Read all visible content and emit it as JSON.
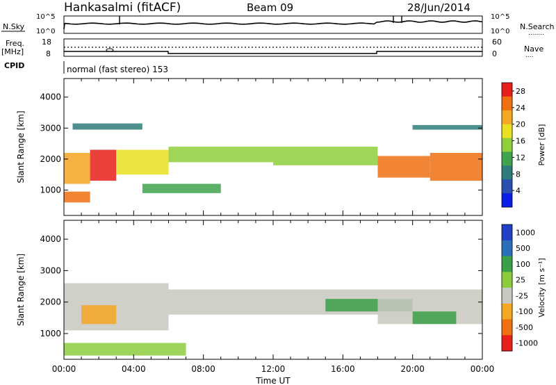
{
  "header": {
    "station": "Hankasalmi (fitACF)",
    "beam": "Beam 09",
    "date": "28/Jun/2014"
  },
  "status_panels": {
    "nsky_label": "N.Sky",
    "nsearch_label": "N.Search",
    "nsearch_legend": "........",
    "freq_label": "Freq.",
    "freq_unit": "[MHz]",
    "nave_label": "Nave",
    "nave_legend": "....",
    "cpid_label": "CPID",
    "cpid_value": "normal (fast stereo) 153",
    "left_ticks_noise": [
      "10^5",
      "10^0"
    ],
    "right_ticks_noise": [
      "10^5",
      "10^0"
    ],
    "left_ticks_freq": [
      "18",
      "8"
    ],
    "right_ticks_nave": [
      "60",
      "0"
    ]
  },
  "chart_data": [
    {
      "type": "heatmap",
      "id": "power",
      "xlabel": "",
      "ylabel": "Slant Range [km]",
      "x_ticks": [
        "00:00",
        "04:00",
        "08:00",
        "12:00",
        "16:00",
        "20:00",
        "00:00"
      ],
      "x_range_hours": [
        0,
        24
      ],
      "y_ticks": [
        1000,
        2000,
        3000,
        4000
      ],
      "y_range_km": [
        180,
        4600
      ],
      "colorbar": {
        "label": "Power [dB]",
        "ticks": [
          4,
          8,
          12,
          16,
          20,
          24,
          28
        ],
        "range": [
          0,
          30
        ],
        "colors": [
          "#0a1ee6",
          "#2a4fb0",
          "#2e7d7a",
          "#3fa34d",
          "#8fcf3a",
          "#e8e020",
          "#f5a623",
          "#f07010",
          "#e8201a"
        ]
      },
      "bands": [
        {
          "t0": 0.0,
          "t1": 1.5,
          "r0": 1200,
          "r1": 2200,
          "level": 22
        },
        {
          "t0": 1.5,
          "t1": 3.0,
          "r0": 1300,
          "r1": 2300,
          "level": 27
        },
        {
          "t0": 3.0,
          "t1": 6.0,
          "r0": 1500,
          "r1": 2300,
          "level": 18
        },
        {
          "t0": 6.0,
          "t1": 12.0,
          "r0": 1900,
          "r1": 2400,
          "level": 14
        },
        {
          "t0": 12.0,
          "t1": 18.0,
          "r0": 1800,
          "r1": 2400,
          "level": 16
        },
        {
          "t0": 18.0,
          "t1": 21.0,
          "r0": 1400,
          "r1": 2100,
          "level": 24
        },
        {
          "t0": 21.0,
          "t1": 24.0,
          "r0": 1300,
          "r1": 2200,
          "level": 26
        },
        {
          "t0": 0.0,
          "t1": 1.5,
          "r0": 600,
          "r1": 950,
          "level": 24
        },
        {
          "t0": 4.5,
          "t1": 9.0,
          "r0": 900,
          "r1": 1200,
          "level": 10
        },
        {
          "t0": 0.5,
          "t1": 4.5,
          "r0": 2950,
          "r1": 3150,
          "level": 8
        },
        {
          "t0": 20.0,
          "t1": 24.0,
          "r0": 2950,
          "r1": 3100,
          "level": 8
        }
      ]
    },
    {
      "type": "heatmap",
      "id": "velocity",
      "xlabel": "Time UT",
      "ylabel": "Slant Range [km]",
      "x_ticks": [
        "00:00",
        "04:00",
        "08:00",
        "12:00",
        "16:00",
        "20:00",
        "00:00"
      ],
      "x_range_hours": [
        0,
        24
      ],
      "y_ticks": [
        1000,
        2000,
        3000,
        4000
      ],
      "y_range_km": [
        180,
        4600
      ],
      "colorbar": {
        "label": "Velocity [m s⁻¹]",
        "ticks": [
          "1000",
          "500",
          "100",
          "25",
          "-25",
          "-100",
          "-500",
          "-1000"
        ],
        "colors": [
          "#2040c8",
          "#2a6fb8",
          "#3aa048",
          "#8ccc3c",
          "#c8c8c0",
          "#f5a623",
          "#f07010",
          "#e8201a"
        ]
      },
      "bands": [
        {
          "t0": 0.0,
          "t1": 6.0,
          "r0": 1100,
          "r1": 2600,
          "level": "-25"
        },
        {
          "t0": 1.0,
          "t1": 3.0,
          "r0": 1300,
          "r1": 1900,
          "level": "-100"
        },
        {
          "t0": 6.0,
          "t1": 18.0,
          "r0": 1600,
          "r1": 2400,
          "level": "-25"
        },
        {
          "t0": 15.0,
          "t1": 20.0,
          "r0": 1700,
          "r1": 2100,
          "level": "100"
        },
        {
          "t0": 18.0,
          "t1": 24.0,
          "r0": 1300,
          "r1": 2400,
          "level": "-25"
        },
        {
          "t0": 20.0,
          "t1": 22.5,
          "r0": 1300,
          "r1": 1700,
          "level": "100"
        },
        {
          "t0": 0.0,
          "t1": 7.0,
          "r0": 300,
          "r1": 700,
          "level": "25"
        }
      ]
    }
  ],
  "colors": {
    "axis": "#000000",
    "empty": "#ffffff"
  }
}
